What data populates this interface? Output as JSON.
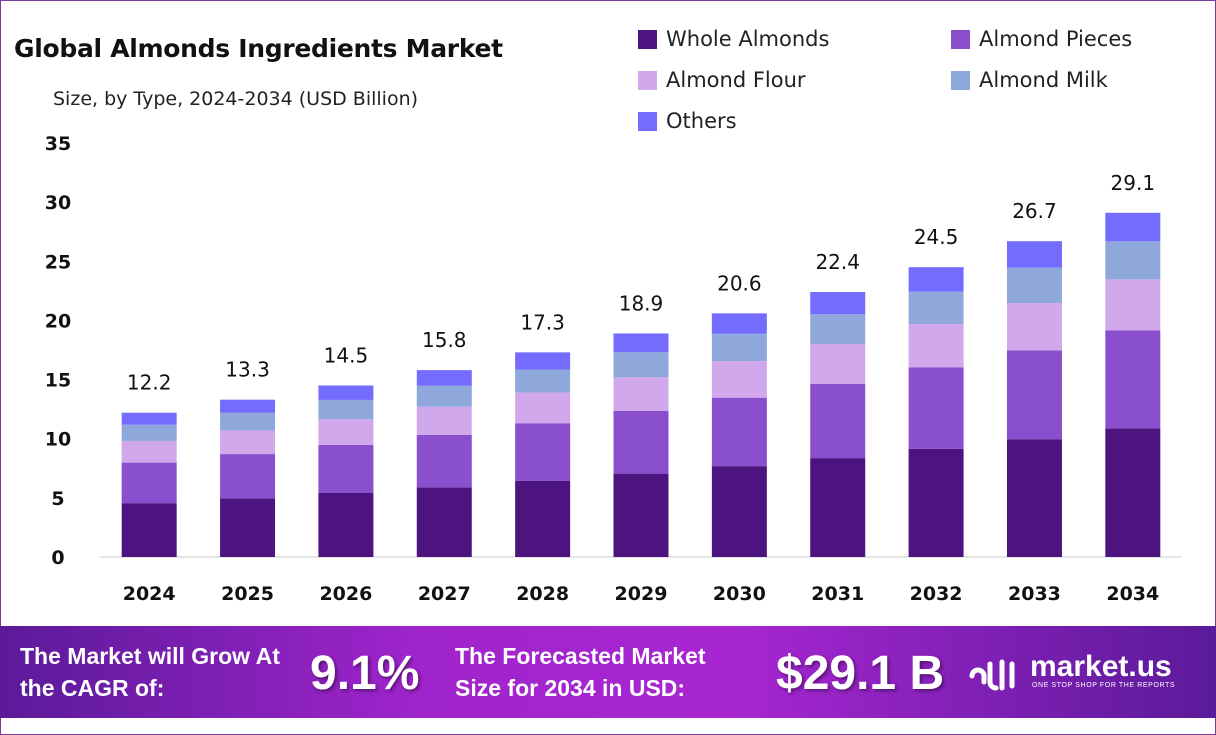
{
  "chart_data": {
    "type": "bar",
    "stacked": true,
    "title": "Global Almonds Ingredients Market",
    "subtitle": "Size, by Type, 2024-2034 (USD Billion)",
    "xlabel": "",
    "ylabel": "",
    "ylim": [
      0,
      35
    ],
    "yticks": [
      0,
      5,
      10,
      15,
      20,
      25,
      30,
      35
    ],
    "grid": false,
    "legend_position": "top-right",
    "categories": [
      "2024",
      "2025",
      "2026",
      "2027",
      "2028",
      "2029",
      "2030",
      "2031",
      "2032",
      "2033",
      "2034"
    ],
    "totals": [
      12.2,
      13.3,
      14.5,
      15.8,
      17.3,
      18.9,
      20.6,
      22.4,
      24.5,
      26.7,
      29.1
    ],
    "series": [
      {
        "name": "Whole Almonds",
        "color": "#4d1480",
        "values": [
          4.55,
          4.96,
          5.41,
          5.89,
          6.45,
          7.05,
          7.68,
          8.36,
          9.14,
          9.96,
          10.88
        ]
      },
      {
        "name": "Almond Pieces",
        "color": "#8a4fcc",
        "values": [
          3.43,
          3.74,
          4.07,
          4.44,
          4.86,
          5.31,
          5.79,
          6.29,
          6.88,
          7.5,
          8.28
        ]
      },
      {
        "name": "Almond Flour",
        "color": "#d1a8ec",
        "values": [
          1.83,
          2.0,
          2.18,
          2.37,
          2.6,
          2.84,
          3.09,
          3.36,
          3.68,
          4.01,
          4.31
        ]
      },
      {
        "name": "Almond Milk",
        "color": "#8fa8dc",
        "values": [
          1.37,
          1.49,
          1.62,
          1.77,
          1.94,
          2.12,
          2.31,
          2.51,
          2.74,
          2.99,
          3.22
        ]
      },
      {
        "name": "Others",
        "color": "#736cff",
        "values": [
          1.02,
          1.11,
          1.22,
          1.33,
          1.45,
          1.58,
          1.73,
          1.88,
          2.06,
          2.24,
          2.41
        ]
      }
    ]
  },
  "footer": {
    "cagr_label": "The Market will Grow At the CAGR of:",
    "cagr_value": "9.1%",
    "forecast_label": "The Forecasted Market Size for 2034 in USD:",
    "forecast_value": "$29.1 B",
    "brand": "market.us",
    "brand_tagline": "ONE STOP SHOP FOR THE REPORTS"
  }
}
